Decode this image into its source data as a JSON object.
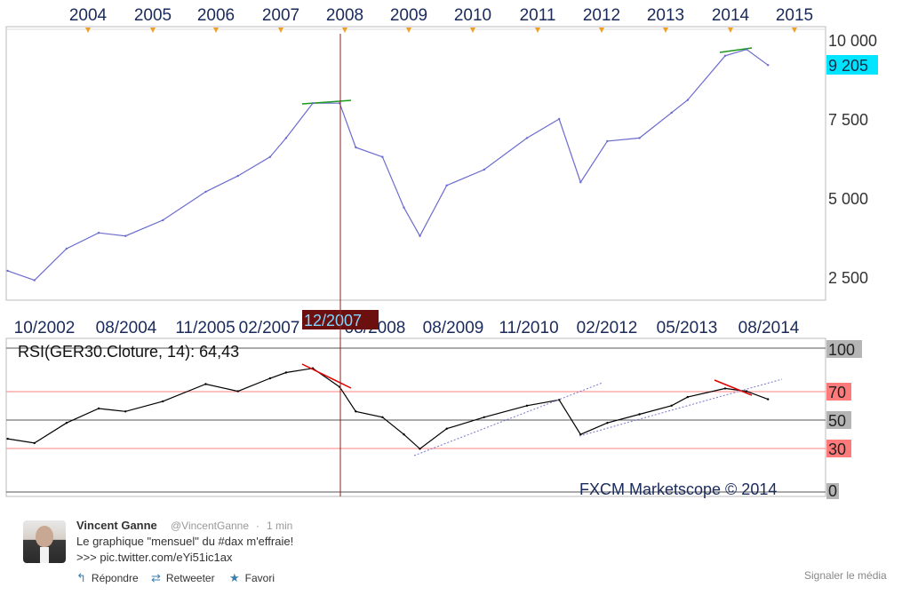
{
  "chart": {
    "top_years": [
      "2004",
      "2005",
      "2006",
      "2007",
      "2008",
      "2009",
      "2010",
      "2011",
      "2012",
      "2013",
      "2014",
      "2015"
    ],
    "price_labels": [
      "10 000",
      "7 500",
      "5 000",
      "2 500"
    ],
    "current_price": "9 205",
    "date_labels": [
      "10/2002",
      "08/2004",
      "11/2005",
      "02/2007",
      "08/2008",
      "08/2009",
      "11/2010",
      "02/2012",
      "05/2013",
      "08/2014"
    ],
    "cursor_date": "12/2007",
    "rsi_title": "RSI(GER30.Cloture, 14): 64,43",
    "rsi_levels": [
      "100",
      "70",
      "50",
      "30",
      "0"
    ],
    "watermark": "FXCM Marketscope © 2014",
    "colors": {
      "price_line": "#6b6bd0",
      "rsi_line": "#000000",
      "cursor": "#8b2020",
      "current_badge": "#00e5ff",
      "level_70_30": "#ff6666",
      "level_gray": "#b5b5b5",
      "trend_green": "#1a9a1a",
      "trend_red": "#e00000"
    }
  },
  "chart_data": [
    {
      "type": "line",
      "title": "",
      "x": [
        "2002-10",
        "2003-03",
        "2003-09",
        "2004-03",
        "2004-08",
        "2005-03",
        "2005-11",
        "2006-05",
        "2006-11",
        "2007-02",
        "2007-07",
        "2007-12",
        "2008-03",
        "2008-08",
        "2008-12",
        "2009-03",
        "2009-08",
        "2010-03",
        "2010-11",
        "2011-05",
        "2011-09",
        "2012-02",
        "2012-08",
        "2013-02",
        "2013-05",
        "2013-12",
        "2014-04",
        "2014-08"
      ],
      "series": [
        {
          "values": [
            2700,
            2400,
            3400,
            3900,
            3800,
            4300,
            5200,
            5700,
            6300,
            6900,
            8000,
            8000,
            6600,
            6300,
            4700,
            3800,
            5400,
            5900,
            6900,
            7500,
            5500,
            6800,
            6900,
            7700,
            8100,
            9500,
            9700,
            9205
          ]
        }
      ],
      "ylim": [
        1700,
        10400
      ],
      "yticks": [
        2500,
        5000,
        7500,
        10000
      ]
    },
    {
      "type": "line",
      "title": "RSI(GER30.Cloture, 14): 64,43",
      "x": [
        "2002-10",
        "2003-03",
        "2003-09",
        "2004-03",
        "2004-08",
        "2005-03",
        "2005-11",
        "2006-05",
        "2006-11",
        "2007-02",
        "2007-07",
        "2007-12",
        "2008-03",
        "2008-08",
        "2008-12",
        "2009-03",
        "2009-08",
        "2010-03",
        "2010-11",
        "2011-05",
        "2011-09",
        "2012-02",
        "2012-08",
        "2013-02",
        "2013-05",
        "2013-12",
        "2014-04",
        "2014-08"
      ],
      "series": [
        {
          "name": "RSI(GER30.Cloture, 14)",
          "values": [
            37,
            34,
            48,
            58,
            56,
            63,
            75,
            70,
            79,
            83,
            86,
            73,
            56,
            52,
            40,
            30,
            44,
            52,
            60,
            64,
            40,
            48,
            54,
            60,
            66,
            72,
            70,
            64.43
          ]
        }
      ],
      "ylim": [
        0,
        100
      ],
      "yticks": [
        0,
        30,
        50,
        70,
        100
      ]
    }
  ],
  "tweet": {
    "name": "Vincent Ganne",
    "handle": "@VincentGanne",
    "separator": "·",
    "time": "1 min",
    "line1": "Le graphique \"mensuel\" du #dax m'effraie!",
    "line2": ">>> pic.twitter.com/eYi51ic1ax",
    "actions": {
      "reply": "Répondre",
      "retweet": "Retweeter",
      "favorite": "Favori"
    },
    "report": "Signaler le média"
  }
}
